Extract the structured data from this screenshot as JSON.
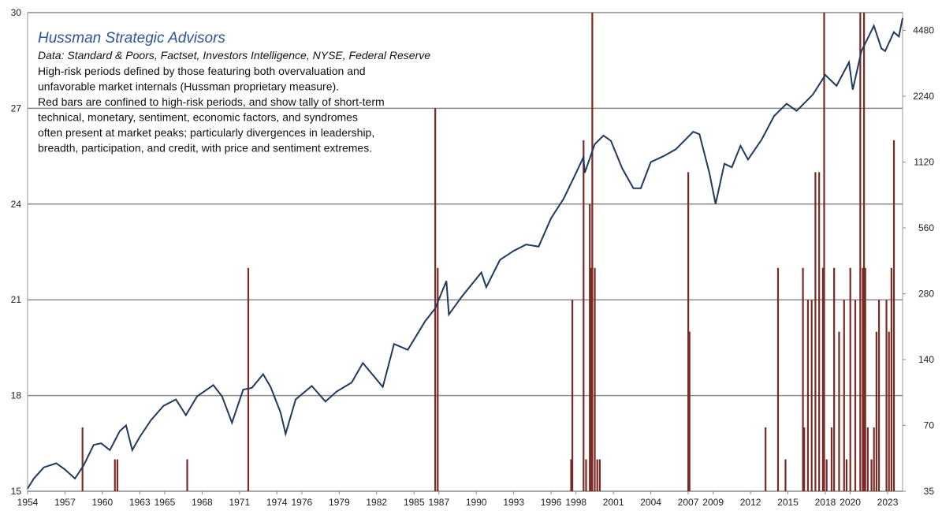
{
  "chart_data": [
    {
      "type": "bar",
      "title": "Hussman Strategic Advisors",
      "subtitle": "Data: Standard & Poors, Factset,  Investors Intelligence,  NYSE, Federal Reserve",
      "annotations": [
        "High-risk periods defined by those featuring both overvaluation and",
        "unfavorable market internals (Hussman proprietary measure).",
        "Red bars are confined to high-risk periods, and show tally of short-term",
        "technical, monetary, sentiment, economic factors, and syndromes",
        "often  present at market peaks; particularly divergences in leadership,",
        "breadth, participation, and credit, with price and sentiment extremes."
      ],
      "color": "#7a2a24",
      "x": [
        1958.4,
        1961.0,
        1961.2,
        1966.8,
        1971.7,
        1986.7,
        1986.9,
        1997.6,
        1997.7,
        1998.6,
        1998.8,
        1999.1,
        1999.2,
        1999.3,
        1999.5,
        1999.7,
        1999.9,
        2007.0,
        2007.1,
        2013.2,
        2014.2,
        2014.8,
        2016.2,
        2016.3,
        2016.6,
        2016.9,
        2017.2,
        2017.5,
        2017.8,
        2017.9,
        2018.1,
        2018.5,
        2018.7,
        2019.1,
        2019.5,
        2019.7,
        2020.0,
        2020.4,
        2020.8,
        2021.0,
        2021.1,
        2021.2,
        2021.4,
        2021.7,
        2021.9,
        2022.1,
        2022.3,
        2022.9,
        2023.1,
        2023.3,
        2023.5
      ],
      "values": [
        17,
        16,
        16,
        16,
        22,
        27,
        22,
        16,
        21,
        26,
        16,
        24,
        22,
        30,
        22,
        16,
        16,
        25,
        20,
        17,
        22,
        16,
        22,
        17,
        21,
        21,
        25,
        25,
        22,
        30,
        16,
        17,
        22,
        20,
        21,
        16,
        22,
        21,
        30,
        22,
        30,
        22,
        17,
        16,
        17,
        20,
        21,
        21,
        20,
        22,
        26
      ],
      "xlim": [
        1954,
        2024.2
      ],
      "xticks": [
        1954,
        1957,
        1960,
        1963,
        1965,
        1968,
        1971,
        1974,
        1976,
        1979,
        1982,
        1985,
        1987,
        1990,
        1993,
        1996,
        1998,
        2001,
        2004,
        2007,
        2009,
        2012,
        2015,
        2018,
        2020,
        2023
      ],
      "ylim": [
        15,
        30
      ],
      "yticks": [
        15,
        18,
        21,
        24,
        27,
        30
      ],
      "grid": true
    },
    {
      "type": "line",
      "color": "#1f3a5f",
      "log_scale": true,
      "x": [
        1954.0,
        1954.5,
        1955.3,
        1956.3,
        1957.0,
        1957.8,
        1958.5,
        1959.3,
        1959.9,
        1960.6,
        1961.4,
        1961.9,
        1962.4,
        1963.0,
        1963.9,
        1964.9,
        1965.9,
        1966.7,
        1967.6,
        1968.9,
        1969.6,
        1970.4,
        1971.3,
        1972.0,
        1972.9,
        1973.5,
        1974.3,
        1974.7,
        1975.5,
        1976.8,
        1977.9,
        1978.8,
        1980.0,
        1980.9,
        1982.5,
        1983.4,
        1984.5,
        1985.9,
        1986.7,
        1987.6,
        1987.8,
        1988.8,
        1990.4,
        1990.8,
        1991.9,
        1993.0,
        1994.0,
        1995.0,
        1996.0,
        1997.0,
        1997.9,
        1998.6,
        1998.7,
        1999.5,
        2000.2,
        2000.8,
        2001.7,
        2002.6,
        2003.2,
        2004.0,
        2005.0,
        2006.0,
        2007.4,
        2007.9,
        2008.7,
        2009.2,
        2009.9,
        2010.5,
        2011.2,
        2011.8,
        2012.9,
        2013.9,
        2014.9,
        2015.7,
        2016.2,
        2017.0,
        2018.0,
        2018.9,
        2019.9,
        2020.2,
        2020.9,
        2021.9,
        2022.5,
        2022.8,
        2023.5,
        2023.9,
        2024.2
      ],
      "values": [
        36,
        40,
        45,
        47,
        44,
        40,
        46,
        57,
        58,
        54,
        66,
        70,
        54,
        62,
        74,
        86,
        92,
        78,
        95,
        107,
        95,
        72,
        102,
        104,
        120,
        105,
        80,
        64,
        92,
        106,
        90,
        100,
        110,
        135,
        105,
        165,
        155,
        210,
        240,
        320,
        225,
        270,
        350,
        300,
        400,
        440,
        470,
        460,
        620,
        760,
        970,
        1180,
        1000,
        1350,
        1480,
        1400,
        1050,
        850,
        850,
        1120,
        1190,
        1280,
        1540,
        1500,
        1000,
        720,
        1100,
        1060,
        1330,
        1150,
        1420,
        1820,
        2070,
        1920,
        2050,
        2280,
        2800,
        2500,
        3200,
        2400,
        3600,
        4700,
        3700,
        3600,
        4400,
        4200,
        5100
      ],
      "ylim": [
        35,
        5400
      ],
      "yticks": [
        35,
        70,
        140,
        280,
        560,
        1120,
        2240,
        4480
      ]
    }
  ]
}
